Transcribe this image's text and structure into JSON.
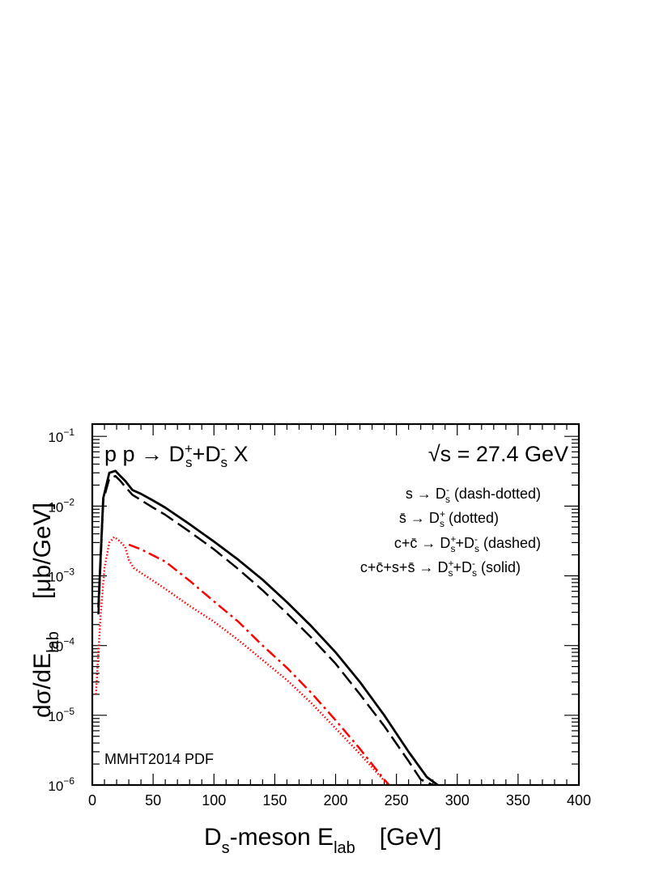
{
  "chart_data": {
    "type": "line",
    "log_y": true,
    "xlim": [
      0,
      400
    ],
    "ylim": [
      1e-06,
      0.15
    ],
    "x_ticks": [
      0,
      50,
      100,
      150,
      200,
      250,
      300,
      350,
      400
    ],
    "y_ticks": [
      {
        "value": 1e-06,
        "base": "10",
        "exp": "−6"
      },
      {
        "value": 1e-05,
        "base": "10",
        "exp": "−5"
      },
      {
        "value": 0.0001,
        "base": "10",
        "exp": "−4"
      },
      {
        "value": 0.001,
        "base": "10",
        "exp": "−3"
      },
      {
        "value": 0.01,
        "base": "10",
        "exp": "−2"
      },
      {
        "value": 0.1,
        "base": "10",
        "exp": "−1"
      }
    ],
    "xlabel": {
      "main": "D",
      "sub": "s",
      "mid": "-meson E",
      "sub2": "lab",
      "unit": "[GeV]"
    },
    "ylabel": {
      "main": "dσ/dE",
      "sub": "lab",
      "unit": "[μb/GeV]"
    },
    "title": {
      "lhs": "p p → D",
      "sup1": "+",
      "sub1": "s",
      "plus": "+D",
      "sup2": "-",
      "sub2": "s",
      "rhs": " X"
    },
    "energy": {
      "root": "√",
      "text": "s = 27.4 GeV"
    },
    "pdf_label": "MMHT2014 PDF",
    "legend_placement": "top-right",
    "legend": [
      {
        "pre": "s → D",
        "sup": "-",
        "sub": "s",
        "post": " (dash-dotted)"
      },
      {
        "pre": "s̄ → D",
        "sup": "+",
        "sub": "s",
        "post": " (dotted)"
      },
      {
        "pre": "c+c̄ → D",
        "sup": "+",
        "sub": "s",
        "mid": "+D",
        "sup2": "-",
        "sub2": "s",
        "post": "  (dashed)"
      },
      {
        "pre": "c+c̄+s+s̄ → D",
        "sup": "+",
        "sub": "s",
        "mid": "+D",
        "sup2": "-",
        "sub2": "s",
        "post": "  (solid)"
      }
    ],
    "series": [
      {
        "style": "solid",
        "color": "#000000",
        "x": [
          5,
          9,
          14,
          19,
          23,
          27,
          33,
          40,
          50,
          60,
          80,
          100,
          120,
          140,
          160,
          180,
          200,
          220,
          240,
          260,
          275,
          284
        ],
        "y": [
          0.00035,
          0.013,
          0.03,
          0.032,
          0.027,
          0.023,
          0.017,
          0.015,
          0.012,
          0.0095,
          0.0055,
          0.0031,
          0.0017,
          0.00088,
          0.00042,
          0.00019,
          8e-05,
          3e-05,
          1e-05,
          3e-06,
          1.3e-06,
          1e-06
        ]
      },
      {
        "style": "dashed",
        "color": "#000000",
        "x": [
          5,
          9,
          14,
          19,
          23,
          27,
          33,
          40,
          50,
          60,
          80,
          100,
          120,
          140,
          160,
          180,
          200,
          220,
          240,
          260,
          270,
          280
        ],
        "y": [
          0.00028,
          0.012,
          0.025,
          0.027,
          0.023,
          0.019,
          0.0145,
          0.0122,
          0.0095,
          0.0075,
          0.0043,
          0.0024,
          0.00125,
          0.00062,
          0.00029,
          0.00013,
          5.5e-05,
          2e-05,
          7e-06,
          2.2e-06,
          1.2e-06,
          1e-06
        ]
      },
      {
        "style": "dashdot",
        "color": "#ff0000",
        "x": [
          30,
          40,
          60,
          80,
          100,
          120,
          140,
          160,
          180,
          200,
          220,
          240,
          244
        ],
        "y": [
          0.0028,
          0.0024,
          0.0016,
          0.00085,
          0.00043,
          0.00022,
          0.0001,
          4.8e-05,
          2.1e-05,
          8.5e-06,
          3.3e-06,
          1.2e-06,
          1e-06
        ]
      },
      {
        "style": "dotted",
        "color": "#ff0000",
        "x": [
          3,
          5,
          7,
          10,
          14,
          18,
          22,
          27,
          30,
          34,
          40,
          50,
          60,
          80,
          100,
          120,
          140,
          160,
          180,
          200,
          220,
          240,
          244
        ],
        "y": [
          2e-05,
          8e-05,
          0.0003,
          0.0013,
          0.003,
          0.0036,
          0.0032,
          0.0026,
          0.0017,
          0.0013,
          0.0011,
          0.00085,
          0.00065,
          0.00037,
          0.00022,
          0.00012,
          6.2e-05,
          3.2e-05,
          1.5e-05,
          6.5e-06,
          2.8e-06,
          1.15e-06,
          1e-06
        ]
      }
    ]
  }
}
